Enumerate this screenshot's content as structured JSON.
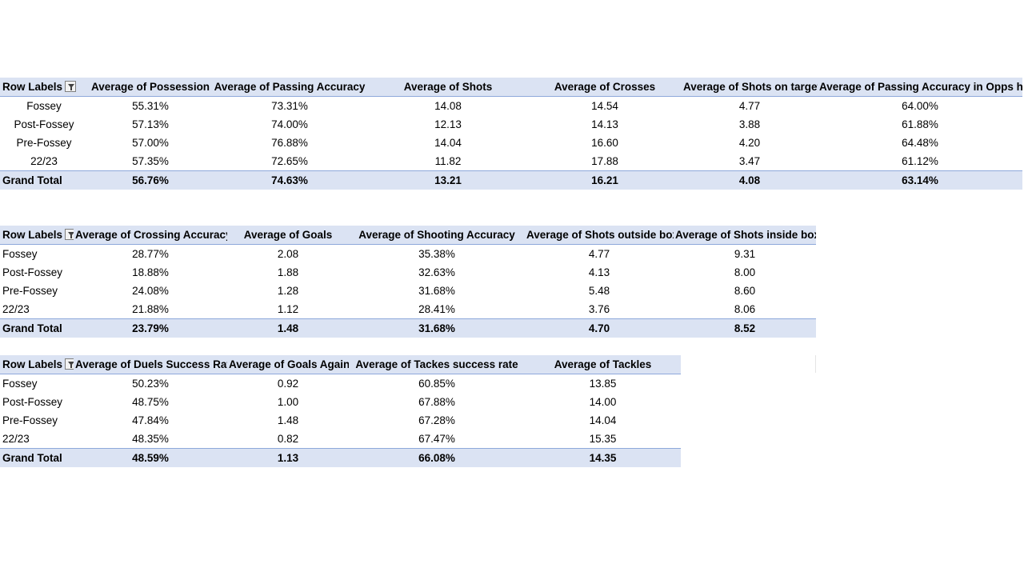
{
  "table1": {
    "headers": [
      "Row Labels",
      "Average of Possession",
      "Average of Passing Accuracy",
      "Average of Shots",
      "Average of Crosses",
      "Average of Shots on target",
      "Average of Passing Accuracy in Opps half"
    ],
    "rows": [
      [
        "Fossey",
        "55.31%",
        "73.31%",
        "14.08",
        "14.54",
        "4.77",
        "64.00%"
      ],
      [
        "Post-Fossey",
        "57.13%",
        "74.00%",
        "12.13",
        "14.13",
        "3.88",
        "61.88%"
      ],
      [
        "Pre-Fossey",
        "57.00%",
        "76.88%",
        "14.04",
        "16.60",
        "4.20",
        "64.48%"
      ],
      [
        "22/23",
        "57.35%",
        "72.65%",
        "11.82",
        "17.88",
        "3.47",
        "61.12%"
      ]
    ],
    "total": [
      "Grand Total",
      "56.76%",
      "74.63%",
      "13.21",
      "16.21",
      "4.08",
      "63.14%"
    ]
  },
  "table2": {
    "headers": [
      "Row Labels",
      "Average of Crossing Accuracy",
      "Average of Goals",
      "Average of Shooting Accuracy",
      "Average of Shots outside box",
      "Average of Shots inside box"
    ],
    "rows": [
      [
        "Fossey",
        "28.77%",
        "2.08",
        "35.38%",
        "4.77",
        "9.31"
      ],
      [
        "Post-Fossey",
        "18.88%",
        "1.88",
        "32.63%",
        "4.13",
        "8.00"
      ],
      [
        "Pre-Fossey",
        "24.08%",
        "1.28",
        "31.68%",
        "5.48",
        "8.60"
      ],
      [
        "22/23",
        "21.88%",
        "1.12",
        "28.41%",
        "3.76",
        "8.06"
      ]
    ],
    "total": [
      "Grand Total",
      "23.79%",
      "1.48",
      "31.68%",
      "4.70",
      "8.52"
    ]
  },
  "table3": {
    "headers": [
      "Row Labels",
      "Average of Duels Success Rate",
      "Average of Goals Against",
      "Average of Tackes success rate",
      "Average of Tackles"
    ],
    "rows": [
      [
        "Fossey",
        "50.23%",
        "0.92",
        "60.85%",
        "13.85"
      ],
      [
        "Post-Fossey",
        "48.75%",
        "1.00",
        "67.88%",
        "14.00"
      ],
      [
        "Pre-Fossey",
        "47.84%",
        "1.48",
        "67.28%",
        "14.04"
      ],
      [
        "22/23",
        "48.35%",
        "0.82",
        "67.47%",
        "15.35"
      ]
    ],
    "total": [
      "Grand Total",
      "48.59%",
      "1.13",
      "66.08%",
      "14.35"
    ]
  },
  "icons": {
    "filter": "filter-dropdown-icon"
  },
  "colors": {
    "header_bg": "#dbe3f3",
    "header_border": "#8ea9db"
  }
}
